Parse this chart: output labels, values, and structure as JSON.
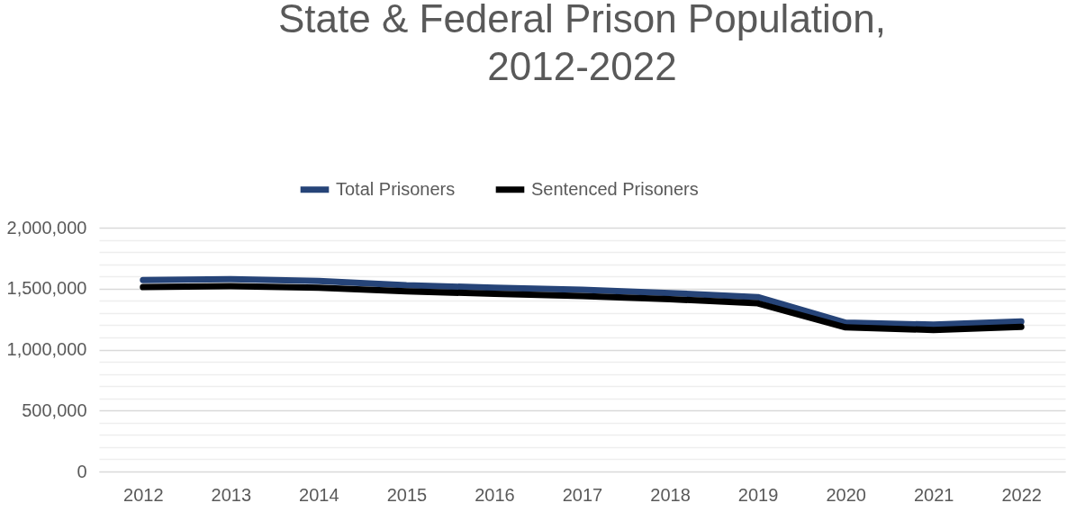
{
  "chart_data": {
    "type": "line",
    "title": "State & Federal Prison Population,\n2012-2022",
    "categories": [
      "2012",
      "2013",
      "2014",
      "2015",
      "2016",
      "2017",
      "2018",
      "2019",
      "2020",
      "2021",
      "2022"
    ],
    "series": [
      {
        "name": "Total Prisoners",
        "color": "#264478",
        "values": [
          1570000,
          1577000,
          1562000,
          1527000,
          1508000,
          1490000,
          1464000,
          1430000,
          1221000,
          1204000,
          1230000
        ]
      },
      {
        "name": "Sentenced Prisoners",
        "color": "#000000",
        "values": [
          1512000,
          1520000,
          1508000,
          1477000,
          1458000,
          1440000,
          1413000,
          1380000,
          1182000,
          1161000,
          1187000
        ]
      }
    ],
    "ylim": [
      0,
      2000000
    ],
    "yticks": [
      0,
      {
        "value": 100000,
        "label": null
      },
      {
        "value": 200000,
        "label": null
      },
      {
        "value": 300000,
        "label": null
      },
      {
        "value": 400000,
        "label": null
      },
      {
        "value": 500000,
        "label": "500,000"
      },
      {
        "value": 600000,
        "label": null
      },
      {
        "value": 700000,
        "label": null
      },
      {
        "value": 800000,
        "label": null
      },
      {
        "value": 900000,
        "label": null
      },
      {
        "value": 1000000,
        "label": "1,000,000"
      },
      {
        "value": 1100000,
        "label": null
      },
      {
        "value": 1200000,
        "label": null
      },
      {
        "value": 1300000,
        "label": null
      },
      {
        "value": 1400000,
        "label": null
      },
      {
        "value": 1500000,
        "label": "1,500,000"
      },
      {
        "value": 1600000,
        "label": null
      },
      {
        "value": 1700000,
        "label": null
      },
      {
        "value": 1800000,
        "label": null
      },
      {
        "value": 1900000,
        "label": null
      },
      {
        "value": 2000000,
        "label": "2,000,000"
      }
    ],
    "grid": true,
    "legend": "top",
    "marker": "none",
    "line_style": "solid"
  }
}
